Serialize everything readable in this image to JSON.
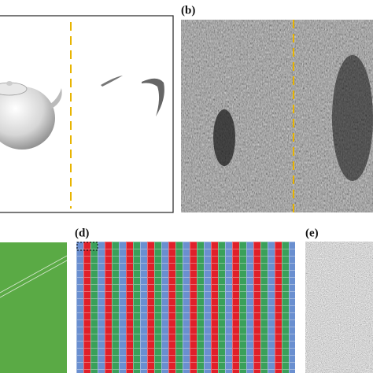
{
  "panels": [
    {
      "label": "(b)"
    },
    {
      "label": "(d)"
    },
    {
      "label": "(e)"
    }
  ]
}
